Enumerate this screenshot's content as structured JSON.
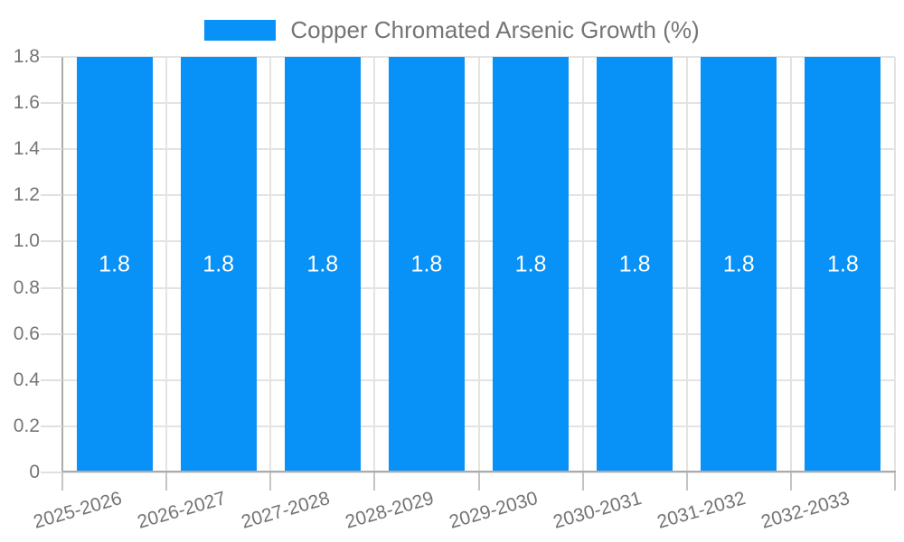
{
  "legend": {
    "label": "Copper Chromated Arsenic Growth (%)"
  },
  "chart_data": {
    "type": "bar",
    "title": "Copper Chromated Arsenic Growth (%)",
    "series_name": "Copper Chromated Arsenic Growth (%)",
    "categories": [
      "2025-2026",
      "2026-2027",
      "2027-2028",
      "2028-2029",
      "2029-2030",
      "2030-2031",
      "2031-2032",
      "2032-2033"
    ],
    "values": [
      1.8,
      1.8,
      1.8,
      1.8,
      1.8,
      1.8,
      1.8,
      1.8
    ],
    "bar_value_labels": [
      "1.8",
      "1.8",
      "1.8",
      "1.8",
      "1.8",
      "1.8",
      "1.8",
      "1.8"
    ],
    "xlabel": "",
    "ylabel": "",
    "ylim": [
      0,
      1.8
    ],
    "ytick_labels": [
      "0",
      "0.2",
      "0.4",
      "0.6",
      "0.8",
      "1.0",
      "1.2",
      "1.4",
      "1.6",
      "1.8"
    ],
    "grid": true,
    "legend_position": "top-center",
    "colors": {
      "bar": "#0891F6",
      "bar_label": "#FFFFFF",
      "text": "#757575",
      "gridline": "#E3E3E3",
      "axis_line": "#ABABAB",
      "y_tick": "#E0E0E0",
      "x_tick": "#C4C4C4",
      "background": "#FFFFFF"
    }
  }
}
